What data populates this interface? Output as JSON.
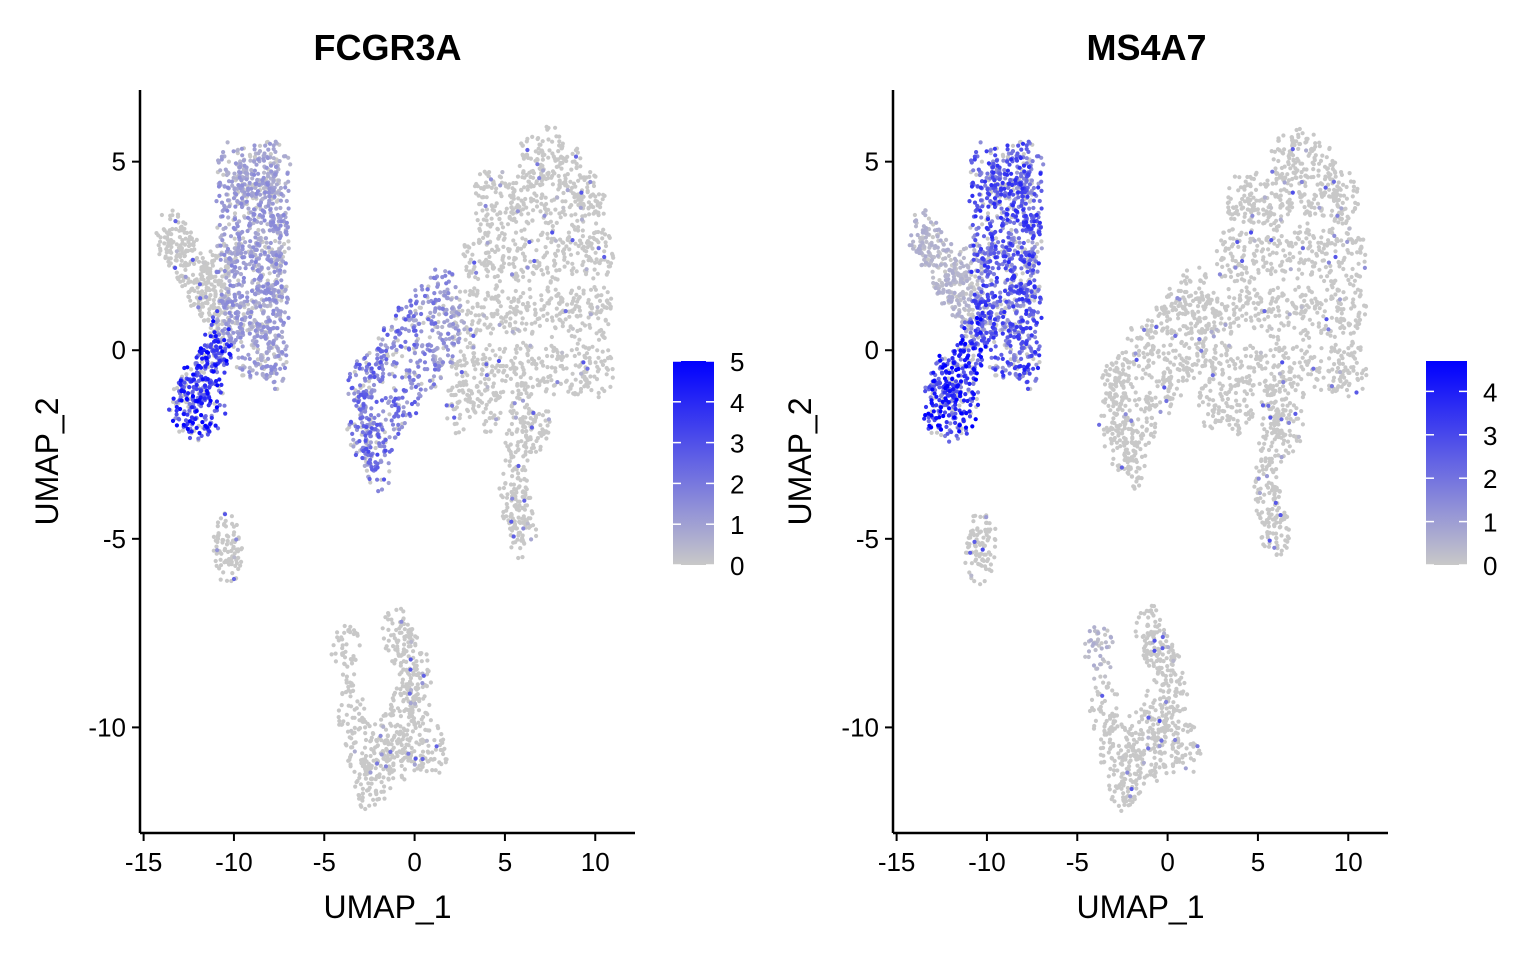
{
  "chart_data": [
    {
      "type": "scatter",
      "title": "FCGR3A",
      "xlabel": "UMAP_1",
      "ylabel": "UMAP_2",
      "xlim": [
        -15.2,
        12.2
      ],
      "ylim": [
        -12.8,
        6.9
      ],
      "xticks": [
        -15,
        -10,
        -5,
        0,
        5,
        10
      ],
      "yticks": [
        -10,
        -5,
        0,
        5
      ],
      "grid": false,
      "legend": {
        "type": "colorbar",
        "placement": "right",
        "range": [
          0,
          5
        ],
        "ticks": [
          0,
          1,
          2,
          3,
          4,
          5
        ],
        "low_color": "#c8c8c8",
        "high_color": "#0000ff"
      },
      "value_key": "FCGR3A"
    },
    {
      "type": "scatter",
      "title": "MS4A7",
      "xlabel": "UMAP_1",
      "ylabel": "UMAP_2",
      "xlim": [
        -15.2,
        12.2
      ],
      "ylim": [
        -12.8,
        6.9
      ],
      "xticks": [
        -15,
        -10,
        -5,
        0,
        5,
        10
      ],
      "yticks": [
        -10,
        -5,
        0,
        5
      ],
      "grid": false,
      "legend": {
        "type": "colorbar",
        "placement": "right",
        "range": [
          0,
          4.7
        ],
        "ticks": [
          0,
          1,
          2,
          3,
          4
        ],
        "low_color": "#c8c8c8",
        "high_color": "#0000ff"
      },
      "value_key": "MS4A7"
    }
  ],
  "cells_columns": [
    "UMAP_1",
    "UMAP_2",
    "FCGR3A",
    "MS4A7"
  ],
  "cells": [
    [
      -10.2,
      0.8,
      1.2,
      2.8
    ],
    [
      -9.2,
      0,
      1.2,
      2.8
    ],
    [
      -8.2,
      0,
      1.2,
      2.8
    ],
    [
      -7.7,
      -0.3,
      1.2,
      3
    ],
    [
      -10.2,
      1,
      1.2,
      2.8
    ],
    [
      -9.2,
      1,
      1.2,
      2.8
    ],
    [
      -8.2,
      1,
      1.2,
      2.8
    ],
    [
      -7.7,
      1,
      1.2,
      2.8
    ],
    [
      -10.2,
      2,
      1.3,
      2.8
    ],
    [
      -9.2,
      2,
      1.3,
      2.8
    ],
    [
      -8.2,
      2,
      1.3,
      2.8
    ],
    [
      -7.7,
      2,
      1.3,
      2.8
    ],
    [
      -10.2,
      3,
      1.2,
      2.8
    ],
    [
      -9.2,
      3,
      1.2,
      2.8
    ],
    [
      -8.2,
      3,
      1.2,
      2.8
    ],
    [
      -7.7,
      3,
      1.2,
      2.8
    ],
    [
      -10.2,
      4,
      1.2,
      2.8
    ],
    [
      -9.2,
      4,
      1.2,
      2.8
    ],
    [
      -8.2,
      4,
      1.2,
      2.8
    ],
    [
      -7.7,
      4,
      1.2,
      2.8
    ],
    [
      -10.1,
      4.8,
      1.0,
      2.8
    ],
    [
      -9.2,
      4.8,
      1.0,
      2.8
    ],
    [
      -8.2,
      4.8,
      1.0,
      2.8
    ],
    [
      -7.7,
      4.8,
      1.0,
      2.8
    ],
    [
      -13.5,
      3,
      0.3,
      0.5
    ],
    [
      -13,
      2.7,
      0.3,
      0.5
    ],
    [
      -12.5,
      2.3,
      0.3,
      0.5
    ],
    [
      -12,
      1.8,
      0.3,
      0.5
    ],
    [
      -11.5,
      1.5,
      0.3,
      0.5
    ],
    [
      -11,
      2,
      0.3,
      0.5
    ],
    [
      -10.8,
      1,
      0.3,
      0.5
    ],
    [
      -12.8,
      -1.5,
      3.8,
      3.8
    ],
    [
      -12,
      -1.7,
      3.8,
      3.8
    ],
    [
      -11.2,
      -1.5,
      3.8,
      3.8
    ],
    [
      -12.3,
      -0.8,
      3.8,
      3.8
    ],
    [
      -11.5,
      -0.6,
      3.8,
      3.8
    ],
    [
      -11,
      -0.2,
      3.8,
      3.8
    ],
    [
      -10.8,
      0.3,
      3.8,
      3.8
    ],
    [
      -12.5,
      -1.2,
      3.8,
      3.8
    ],
    [
      -10.3,
      -5,
      0,
      0.1
    ],
    [
      -10.4,
      -5.5,
      0,
      0
    ],
    [
      3,
      -0.5,
      0.1,
      0.2
    ],
    [
      4.5,
      -0.5,
      0.1,
      0.2
    ],
    [
      6,
      -0.5,
      0.1,
      0.2
    ],
    [
      7.5,
      -0.5,
      0.1,
      0.2
    ],
    [
      9,
      -0.5,
      0.1,
      0.2
    ],
    [
      10.2,
      -0.5,
      0.1,
      0.2
    ],
    [
      3,
      1,
      0.1,
      0.2
    ],
    [
      4.5,
      1,
      0.1,
      0.2
    ],
    [
      6,
      1,
      0.1,
      0.2
    ],
    [
      7.5,
      1,
      0.1,
      0.2
    ],
    [
      9,
      1,
      0.1,
      0.2
    ],
    [
      10.2,
      1,
      0.1,
      0.2
    ],
    [
      3.5,
      2.5,
      0.1,
      0.2
    ],
    [
      4.5,
      2.5,
      0.1,
      0.2
    ],
    [
      6,
      2.5,
      0.1,
      0.2
    ],
    [
      7.5,
      2.5,
      0.1,
      0.2
    ],
    [
      9,
      2.5,
      0.1,
      0.2
    ],
    [
      10.2,
      2.5,
      0.1,
      0.2
    ],
    [
      4,
      4,
      0.1,
      0.2
    ],
    [
      5,
      4,
      0.1,
      0.2
    ],
    [
      6,
      4,
      0.1,
      0.2
    ],
    [
      7.5,
      4,
      0.1,
      0.2
    ],
    [
      9,
      4,
      0.1,
      0.2
    ],
    [
      9.8,
      4,
      0.1,
      0.2
    ],
    [
      6.5,
      5,
      0.1,
      0.2
    ],
    [
      7.5,
      5.2,
      0.1,
      0.2
    ],
    [
      8.5,
      4.8,
      0.1,
      0.2
    ],
    [
      1.5,
      1.5,
      1.5,
      0.4
    ],
    [
      0.5,
      1,
      1.8,
      0.4
    ],
    [
      -0.5,
      0.5,
      2.2,
      0.4
    ],
    [
      -1.5,
      0,
      2.2,
      0.4
    ],
    [
      -2.5,
      -0.8,
      2.2,
      0.4
    ],
    [
      -3,
      -2,
      2.2,
      0.4
    ],
    [
      -2.5,
      -2.5,
      2.2,
      0.4
    ],
    [
      -1.5,
      -2,
      2.2,
      0.4
    ],
    [
      -0.5,
      -1.2,
      2.2,
      0.4
    ],
    [
      0.5,
      -0.5,
      1.8,
      0.4
    ],
    [
      1.5,
      0,
      1.5,
      0.4
    ],
    [
      2,
      0.8,
      1.2,
      0.4
    ],
    [
      -2,
      -3,
      2.4,
      0.4
    ],
    [
      -3,
      -1,
      2.2,
      0.4
    ],
    [
      2.5,
      -1.5,
      0.1,
      0.2
    ],
    [
      4,
      -1.5,
      0.1,
      0.2
    ],
    [
      6,
      -1.5,
      0.1,
      0.2
    ],
    [
      5.8,
      -2.5,
      0.1,
      0.2
    ],
    [
      5.5,
      -3.5,
      0.1,
      0.2
    ],
    [
      5.7,
      -4.3,
      0.1,
      0.2
    ],
    [
      6,
      -4.8,
      0.1,
      0.2
    ],
    [
      6.7,
      -2,
      0.1,
      0.2
    ],
    [
      -3.8,
      -8,
      0.4,
      0.5
    ],
    [
      -3.5,
      -9.5,
      0.3,
      0.3
    ],
    [
      -3,
      -10.5,
      0.3,
      0.3
    ],
    [
      -2,
      -11.2,
      0.2,
      0.3
    ],
    [
      -1,
      -10.8,
      0.2,
      0.3
    ],
    [
      0,
      -10.5,
      0.2,
      0.3
    ],
    [
      1,
      -10.6,
      0.2,
      0.3
    ],
    [
      -0.5,
      -9.5,
      0.2,
      0.3
    ],
    [
      -0.5,
      -8,
      0.2,
      0.3
    ],
    [
      -1,
      -7.5,
      0.2,
      0.3
    ],
    [
      0,
      -8.5,
      0.2,
      0.3
    ],
    [
      -2.5,
      -11.5,
      0.2,
      0.3
    ],
    [
      -1.5,
      -10.2,
      0.2,
      0.3
    ],
    [
      0.3,
      -9.3,
      0.2,
      0.3
    ]
  ]
}
